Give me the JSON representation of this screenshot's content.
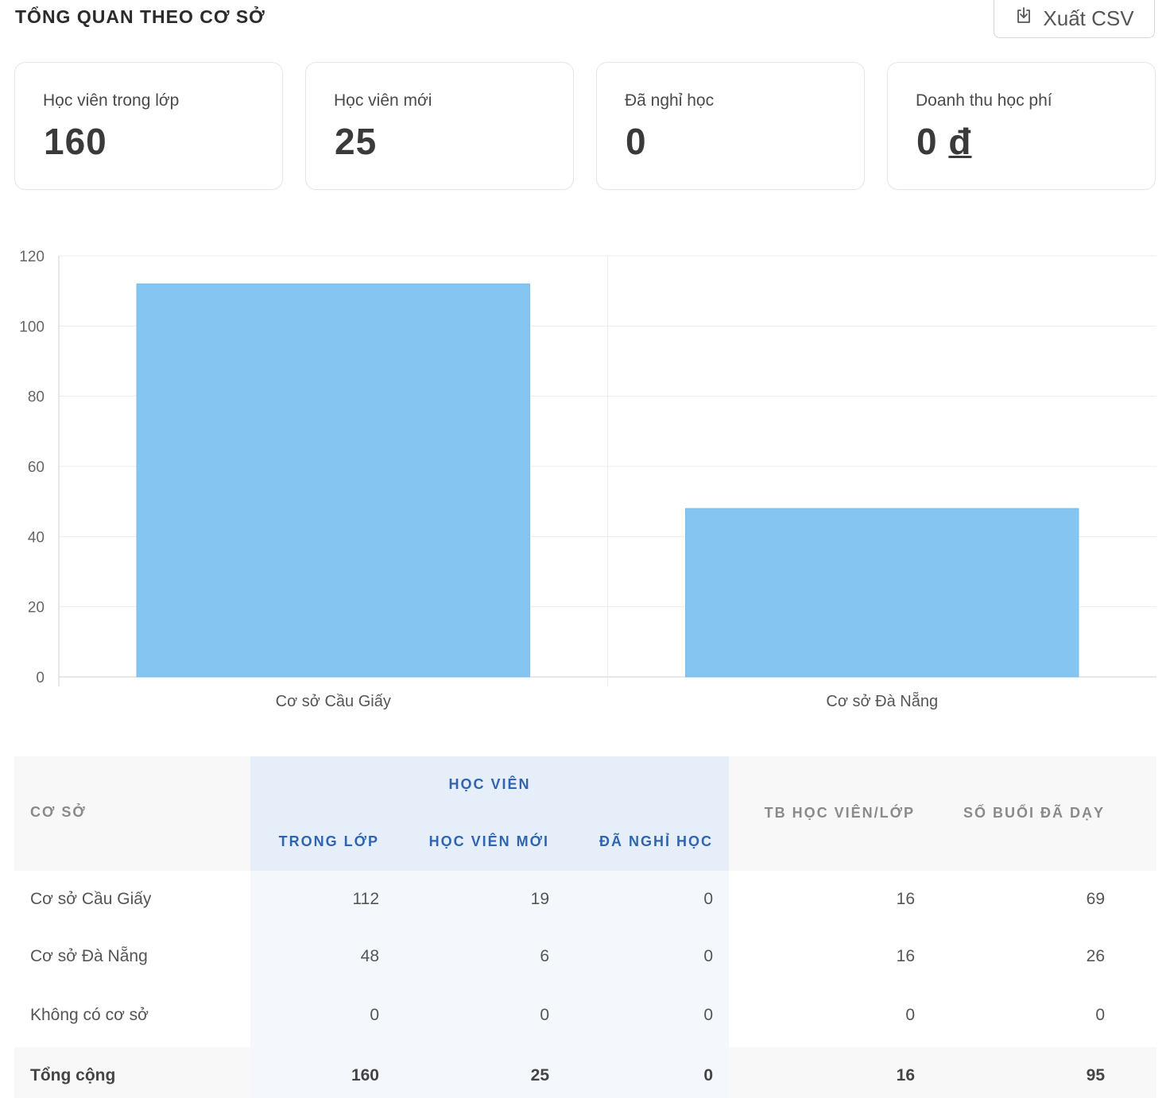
{
  "header": {
    "title": "TỔNG QUAN THEO CƠ SỞ",
    "export_label": "Xuất CSV"
  },
  "cards": [
    {
      "label": "Học viên trong lớp",
      "value": "160"
    },
    {
      "label": "Học viên mới",
      "value": "25"
    },
    {
      "label": "Đã nghỉ học",
      "value": "0"
    },
    {
      "label": "Doanh thu học phí",
      "value": "0",
      "currency": "đ"
    }
  ],
  "chart_data": {
    "type": "bar",
    "categories": [
      "Cơ sở Cầu Giấy",
      "Cơ sở Đà Nẵng"
    ],
    "values": [
      112,
      48
    ],
    "ylim": [
      0,
      120
    ],
    "yticks": [
      0,
      20,
      40,
      60,
      80,
      100,
      120
    ],
    "grid": true,
    "bar_color": "#85c5f2"
  },
  "table": {
    "headers": {
      "campus": "CƠ SỞ",
      "students_group": "HỌC VIÊN",
      "in_class": "TRONG LỚP",
      "new": "HỌC VIÊN MỚI",
      "dropped": "ĐÃ NGHỈ HỌC",
      "avg": "TB HỌC VIÊN/LỚP",
      "sessions": "SỐ BUỔI ĐÃ DẠY"
    },
    "rows": [
      {
        "campus": "Cơ sở Cầu Giấy",
        "in_class": "112",
        "new": "19",
        "dropped": "0",
        "avg": "16",
        "sessions": "69"
      },
      {
        "campus": "Cơ sở Đà Nẵng",
        "in_class": "48",
        "new": "6",
        "dropped": "0",
        "avg": "16",
        "sessions": "26"
      },
      {
        "campus": "Không có cơ sở",
        "in_class": "0",
        "new": "0",
        "dropped": "0",
        "avg": "0",
        "sessions": "0"
      }
    ],
    "total": {
      "campus": "Tổng cộng",
      "in_class": "160",
      "new": "25",
      "dropped": "0",
      "avg": "16",
      "sessions": "95"
    }
  },
  "colors": {
    "accent": "#2f65b0",
    "bar": "#85c5f2"
  },
  "icons": {
    "export": "download-icon"
  }
}
